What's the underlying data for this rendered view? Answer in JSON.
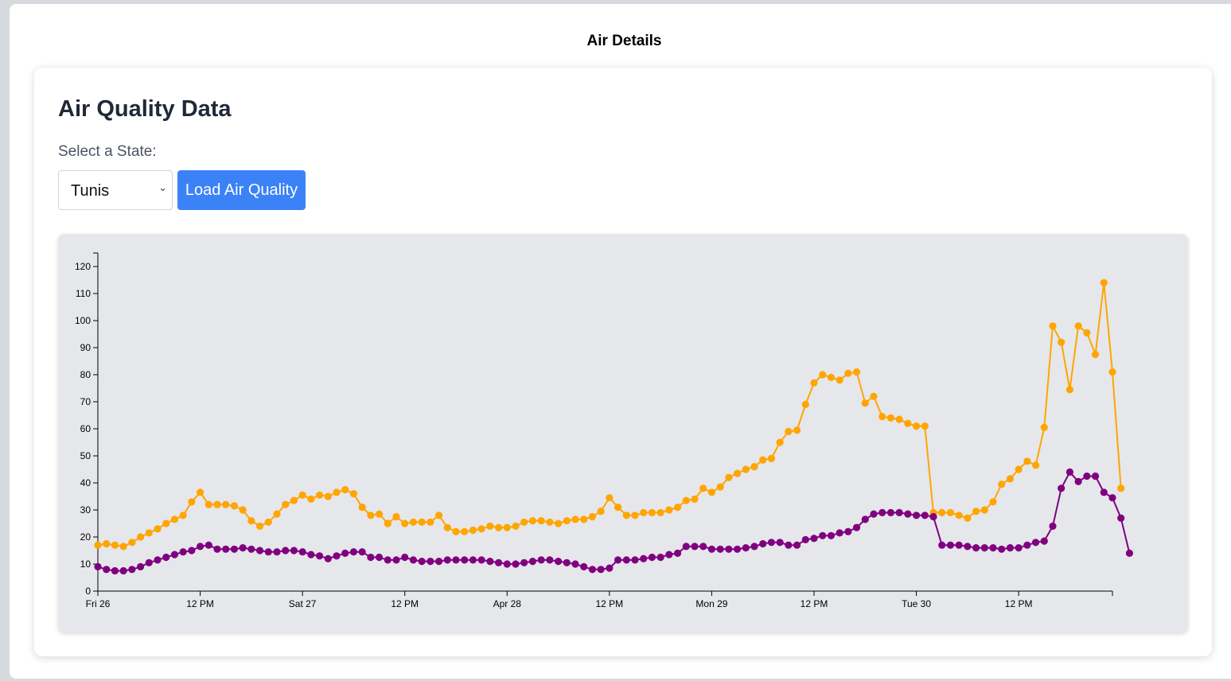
{
  "header": {
    "title": "Air Details"
  },
  "card": {
    "heading": "Air Quality Data",
    "select_label": "Select a State:",
    "selected_state": "Tunis",
    "load_button_label": "Load Air Quality"
  },
  "colors": {
    "accent": "#3b82f6",
    "series_orange": "#ffa500",
    "series_purple": "#800080"
  },
  "chart_data": {
    "type": "line",
    "title": "",
    "xlabel": "",
    "ylabel": "",
    "ylim": [
      0,
      125
    ],
    "yticks": [
      0,
      10,
      20,
      30,
      40,
      50,
      60,
      70,
      80,
      90,
      100,
      110,
      120
    ],
    "x_range_hours": [
      0,
      119
    ],
    "xticks": [
      {
        "hour": 0,
        "label": "Fri 26"
      },
      {
        "hour": 12,
        "label": "12 PM"
      },
      {
        "hour": 24,
        "label": "Sat 27"
      },
      {
        "hour": 36,
        "label": "12 PM"
      },
      {
        "hour": 48,
        "label": "Apr 28"
      },
      {
        "hour": 60,
        "label": "12 PM"
      },
      {
        "hour": 72,
        "label": "Mon 29"
      },
      {
        "hour": 84,
        "label": "12 PM"
      },
      {
        "hour": 96,
        "label": "Tue 30"
      },
      {
        "hour": 108,
        "label": "12 PM"
      }
    ],
    "grid": false,
    "legend": "none",
    "series": [
      {
        "color": "#ffa500",
        "values": [
          17,
          17.5,
          17,
          16.5,
          18,
          20,
          21.5,
          23,
          25,
          26.5,
          28,
          33,
          36.5,
          32,
          32,
          32,
          31.5,
          30,
          26,
          24,
          25.5,
          28.5,
          32,
          33.5,
          35.5,
          34,
          35.5,
          35,
          36.5,
          37.5,
          36,
          31,
          28,
          28.5,
          25,
          27.5,
          25,
          25.5,
          25.5,
          25.5,
          28,
          23.5,
          22,
          22,
          22.5,
          23,
          24,
          23.5,
          23.5,
          24,
          25.5,
          26,
          26,
          25.5,
          25,
          26,
          26.5,
          26.5,
          27.5,
          29.5,
          34.5,
          31,
          28,
          28,
          29,
          29,
          29,
          30,
          31,
          33.5,
          34,
          38,
          36.5,
          38.5,
          42,
          43.5,
          45,
          46,
          48.5,
          49,
          55,
          59,
          59.5,
          69,
          77,
          80,
          79,
          78,
          80.5,
          81,
          69.5,
          72,
          64.5,
          64,
          63.5,
          62,
          61,
          61,
          29,
          29,
          29,
          28,
          27,
          29.5,
          30,
          33,
          39.5,
          41.5,
          45,
          48,
          46.5,
          60.5,
          98,
          92,
          74.5,
          98,
          95.5,
          87.5,
          114,
          81,
          38
        ]
      },
      {
        "color": "#800080",
        "values": [
          9,
          8,
          7.5,
          7.5,
          8,
          9,
          10.5,
          11.5,
          12.5,
          13.5,
          14.5,
          15,
          16.5,
          17,
          15.5,
          15.5,
          15.5,
          16,
          15.5,
          15,
          14.5,
          14.5,
          15,
          15,
          14.5,
          13.5,
          13,
          12,
          13,
          14,
          14.5,
          14.5,
          12.5,
          12.5,
          11.5,
          11.5,
          12.5,
          11.5,
          11,
          11,
          11,
          11.5,
          11.5,
          11.5,
          11.5,
          11.5,
          11,
          10.5,
          10,
          10,
          10.5,
          11,
          11.5,
          11.5,
          11,
          10.5,
          10,
          9,
          8,
          8,
          8.5,
          11.5,
          11.5,
          11.5,
          12,
          12.5,
          12.5,
          13.5,
          14,
          16.5,
          16.5,
          16.5,
          15.5,
          15.5,
          15.5,
          15.5,
          16,
          16.5,
          17.5,
          18,
          18,
          17,
          17,
          19,
          19.5,
          20.5,
          20.5,
          21.5,
          22,
          23.5,
          26.5,
          28.5,
          29,
          29,
          29,
          28.5,
          28,
          28,
          27.5,
          17,
          17,
          17,
          16.5,
          16,
          16,
          16,
          15.5,
          16,
          16,
          17,
          18,
          18.5,
          24,
          38,
          44,
          40.5,
          42.5,
          42.5,
          36.5,
          34.5,
          27,
          14
        ]
      }
    ]
  }
}
